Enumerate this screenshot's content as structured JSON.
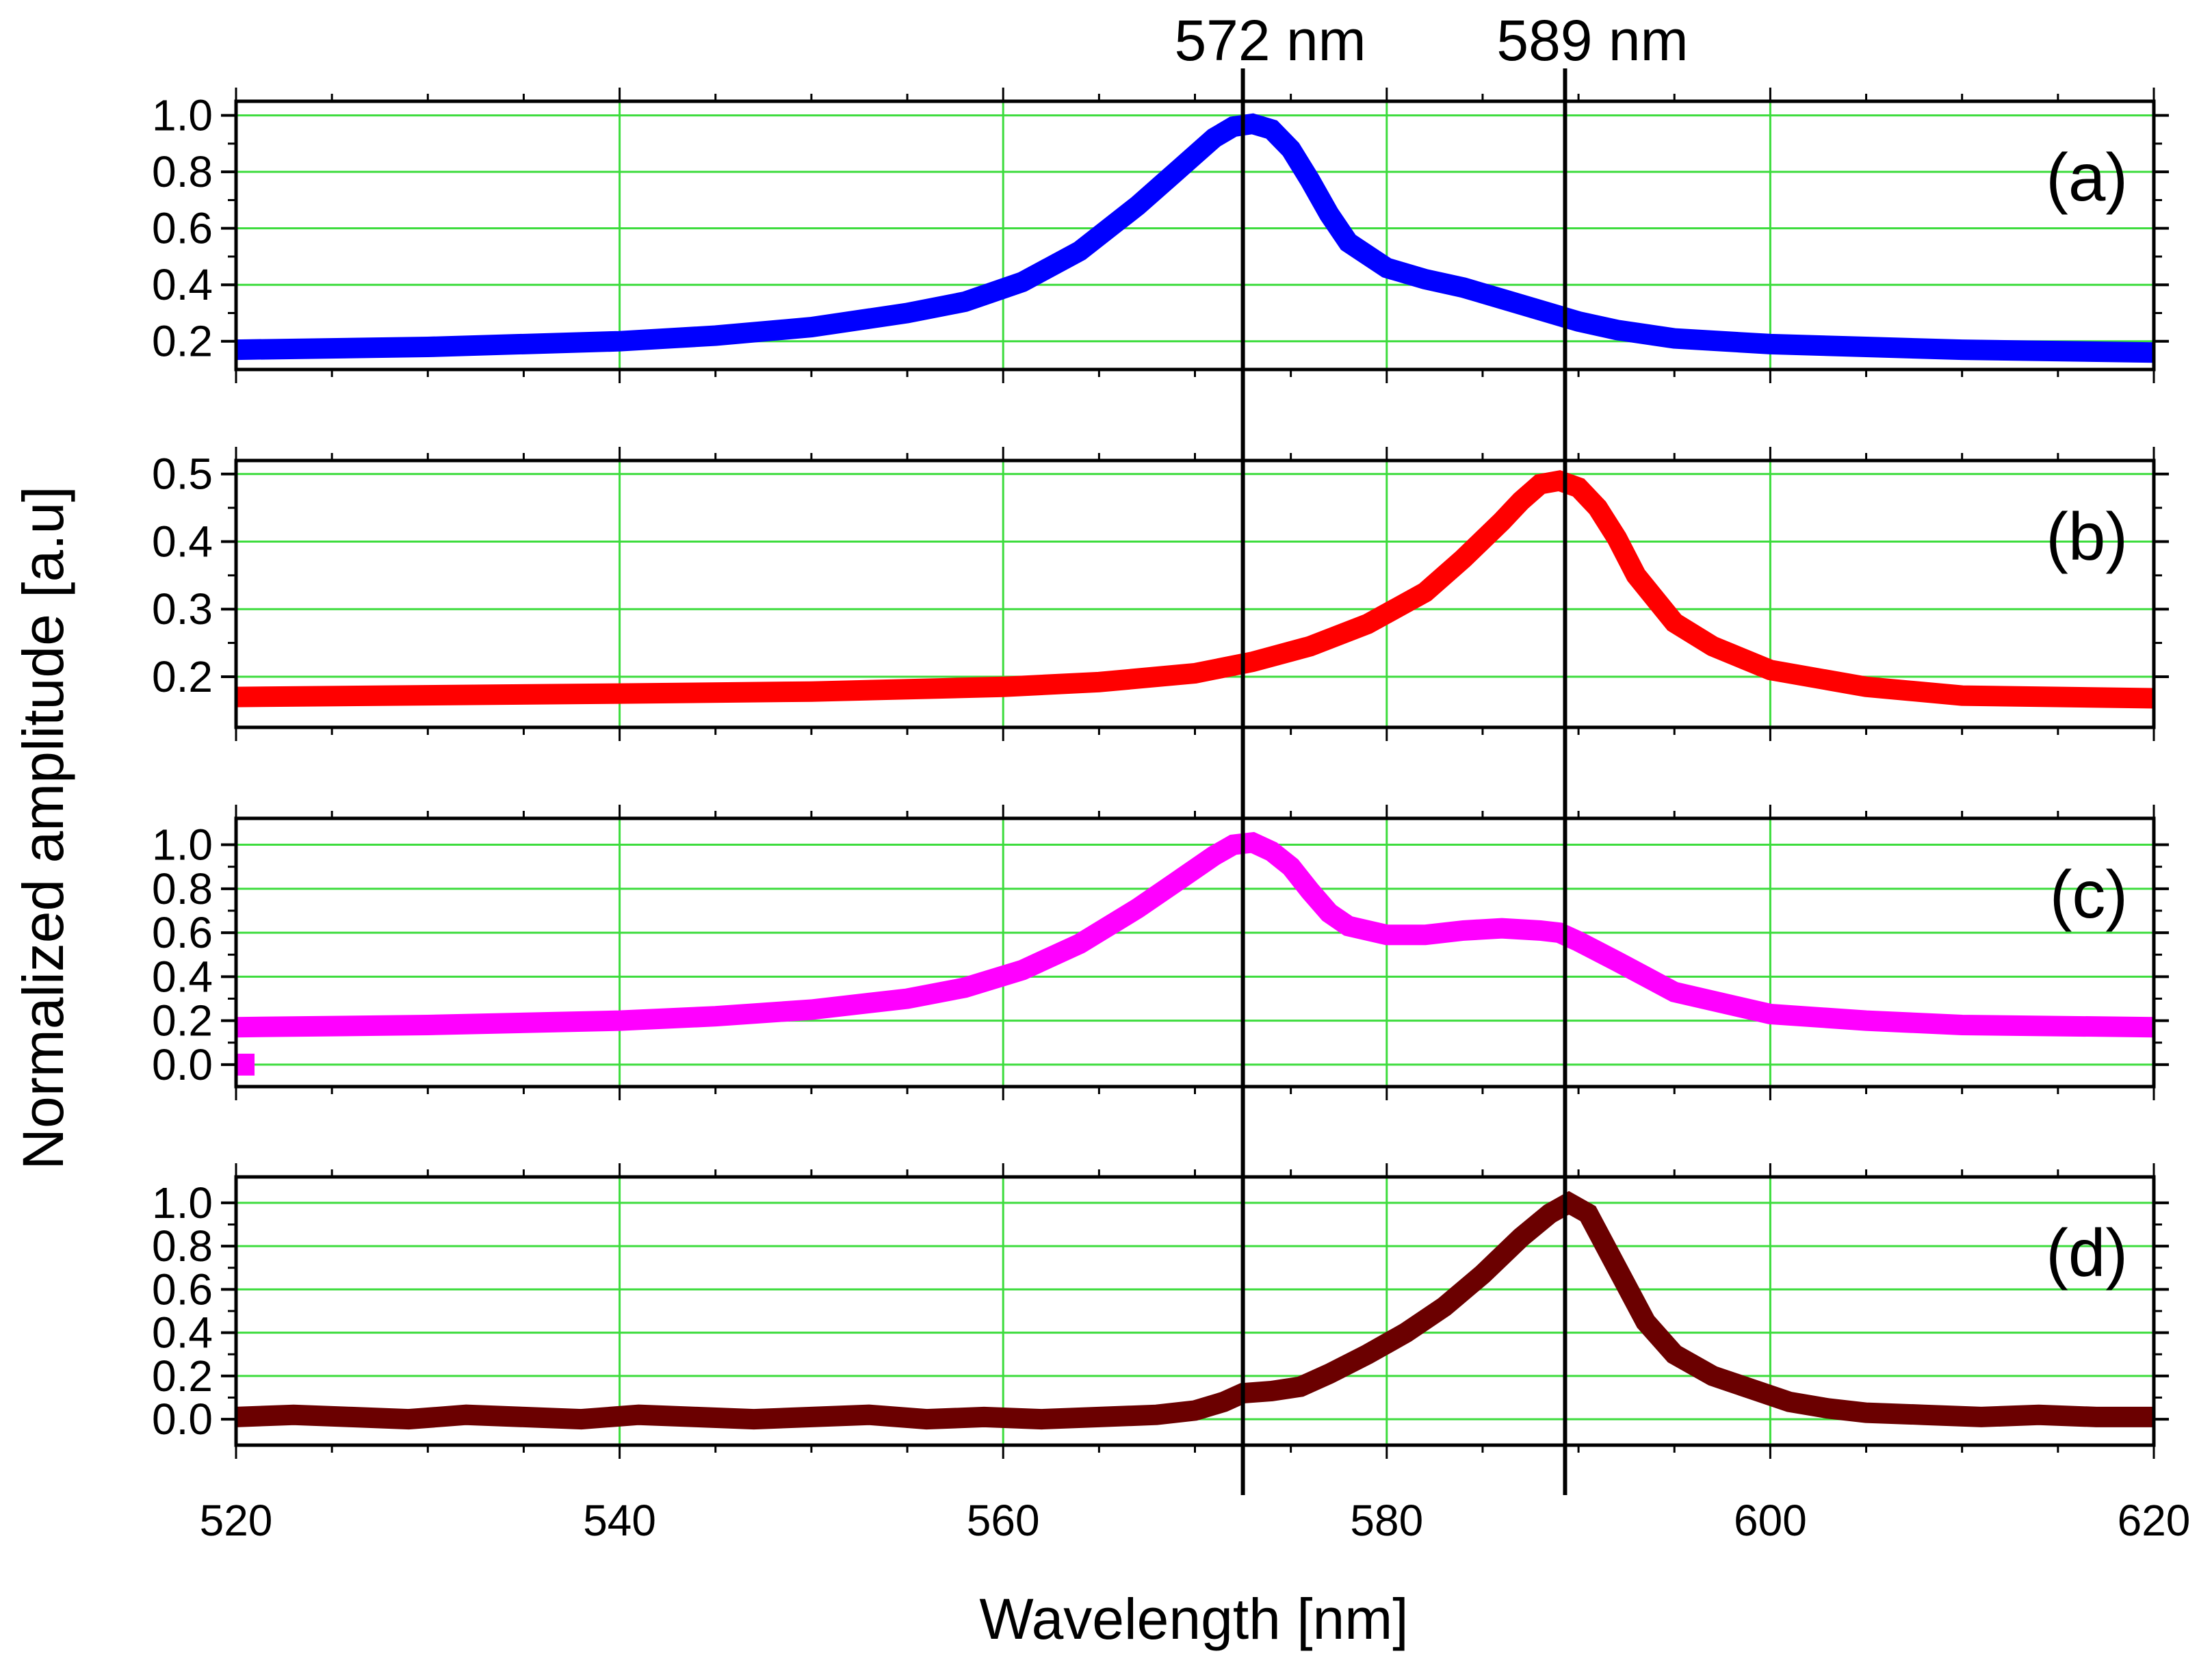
{
  "chart_data": {
    "type": "line",
    "xlabel": "Wavelength [nm]",
    "ylabel": "Normalized amplitude [a.u]",
    "xlim": [
      520,
      620
    ],
    "x_ticks": [
      520,
      540,
      560,
      580,
      600,
      620
    ],
    "x_tick_labels": [
      "520",
      "540",
      "560",
      "580",
      "600",
      "620"
    ],
    "grid": true,
    "grid_color": "#3ddc3d",
    "reference_lines": [
      {
        "x": 572.5,
        "label": "572 nm"
      },
      {
        "x": 589.3,
        "label": "589 nm"
      }
    ],
    "panels": [
      {
        "label": "(a)",
        "color": "#0000ff",
        "ylim": [
          0.1,
          1.05
        ],
        "y_ticks": [
          0.2,
          0.4,
          0.6,
          0.8,
          1.0
        ],
        "y_tick_labels": [
          "0.2",
          "0.4",
          "0.6",
          "0.8",
          "1.0"
        ],
        "series": {
          "x": [
            520,
            530,
            540,
            545,
            550,
            555,
            558,
            561,
            564,
            567,
            569,
            571,
            572,
            573,
            574,
            575,
            576,
            577,
            578,
            580,
            582,
            584,
            586,
            588,
            590,
            592,
            595,
            600,
            605,
            610,
            620
          ],
          "y": [
            0.17,
            0.18,
            0.2,
            0.22,
            0.25,
            0.3,
            0.34,
            0.41,
            0.52,
            0.68,
            0.8,
            0.92,
            0.96,
            0.97,
            0.95,
            0.88,
            0.77,
            0.65,
            0.55,
            0.46,
            0.42,
            0.39,
            0.35,
            0.31,
            0.27,
            0.24,
            0.21,
            0.19,
            0.18,
            0.17,
            0.16
          ]
        }
      },
      {
        "label": "(b)",
        "color": "#ff0000",
        "ylim": [
          0.125,
          0.52
        ],
        "y_ticks": [
          0.2,
          0.3,
          0.4,
          0.5
        ],
        "y_tick_labels": [
          "0.2",
          "0.3",
          "0.4",
          "0.5"
        ],
        "series": {
          "x": [
            520,
            540,
            550,
            560,
            565,
            570,
            573,
            576,
            579,
            582,
            584,
            586,
            587,
            588,
            589,
            590,
            591,
            592,
            593,
            595,
            597,
            600,
            605,
            610,
            620
          ],
          "y": [
            0.17,
            0.175,
            0.178,
            0.185,
            0.192,
            0.205,
            0.222,
            0.245,
            0.278,
            0.325,
            0.375,
            0.43,
            0.46,
            0.485,
            0.49,
            0.48,
            0.45,
            0.405,
            0.35,
            0.28,
            0.245,
            0.21,
            0.185,
            0.172,
            0.168
          ]
        }
      },
      {
        "label": "(c)",
        "color": "#ff00ff",
        "ylim": [
          -0.1,
          1.12
        ],
        "y_ticks": [
          0.0,
          0.2,
          0.4,
          0.6,
          0.8,
          1.0
        ],
        "y_tick_labels": [
          "0.0",
          "0.2",
          "0.4",
          "0.6",
          "0.8",
          "1.0"
        ],
        "series": {
          "x": [
            520,
            530,
            540,
            545,
            550,
            555,
            558,
            561,
            564,
            567,
            569,
            571,
            572,
            573,
            574,
            575,
            576,
            577,
            578,
            580,
            582,
            584,
            586,
            588,
            589,
            590,
            592,
            595,
            600,
            605,
            610,
            620
          ],
          "y": [
            0.17,
            0.18,
            0.2,
            0.22,
            0.25,
            0.3,
            0.35,
            0.43,
            0.55,
            0.71,
            0.83,
            0.95,
            1.0,
            1.01,
            0.97,
            0.9,
            0.79,
            0.69,
            0.63,
            0.59,
            0.59,
            0.61,
            0.62,
            0.61,
            0.6,
            0.56,
            0.47,
            0.33,
            0.23,
            0.2,
            0.18,
            0.17
          ]
        },
        "outlier": {
          "x": 520.5,
          "y": 0.0
        }
      },
      {
        "label": "(d)",
        "color": "#6b0000",
        "ylim": [
          -0.12,
          1.12
        ],
        "y_ticks": [
          0.0,
          0.2,
          0.4,
          0.6,
          0.8,
          1.0
        ],
        "y_tick_labels": [
          "0.0",
          "0.2",
          "0.4",
          "0.6",
          "0.8",
          "1.0"
        ],
        "series": {
          "x": [
            520,
            523,
            526,
            529,
            532,
            535,
            538,
            541,
            544,
            547,
            550,
            553,
            556,
            559,
            562,
            565,
            568,
            570,
            571.5,
            572.5,
            574,
            575.5,
            577,
            579,
            581,
            583,
            585,
            587,
            588.5,
            589.5,
            590.5,
            592,
            593.5,
            595,
            597,
            599,
            601,
            603,
            605,
            608,
            611,
            614,
            617,
            620
          ],
          "y": [
            0.01,
            0.02,
            0.01,
            0.0,
            0.02,
            0.01,
            0.0,
            0.02,
            0.01,
            0.0,
            0.01,
            0.02,
            0.0,
            0.01,
            0.0,
            0.01,
            0.02,
            0.04,
            0.08,
            0.12,
            0.13,
            0.15,
            0.21,
            0.3,
            0.4,
            0.52,
            0.67,
            0.84,
            0.95,
            1.0,
            0.95,
            0.7,
            0.45,
            0.3,
            0.2,
            0.14,
            0.08,
            0.05,
            0.03,
            0.02,
            0.01,
            0.02,
            0.01,
            0.01
          ]
        }
      }
    ]
  }
}
